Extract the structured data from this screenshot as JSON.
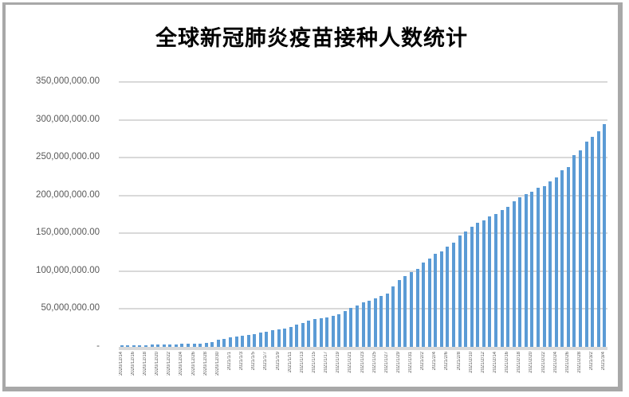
{
  "frame": {
    "background": "#ffffff",
    "border_color": "#a8a8a8"
  },
  "chart_data": {
    "type": "bar",
    "title": "全球新冠肺炎疫苗接种人数统计",
    "xlabel": "",
    "ylabel": "",
    "ylim": [
      0,
      350000000
    ],
    "grid": true,
    "legend": false,
    "bar_color": "#5b9bd5",
    "gridline_color": "#d9d9d9",
    "axis_text_color": "#595959",
    "x_tick_every": 2,
    "y_ticks": [
      {
        "label": "350,000,000.00",
        "value": 350000000
      },
      {
        "label": "300,000,000.00",
        "value": 300000000
      },
      {
        "label": "250,000,000.00",
        "value": 250000000
      },
      {
        "label": "200,000,000.00",
        "value": 200000000
      },
      {
        "label": "150,000,000.00",
        "value": 150000000
      },
      {
        "label": "100,000,000.00",
        "value": 100000000
      },
      {
        "label": "50,000,000.00",
        "value": 50000000
      },
      {
        "label": "-",
        "value": 0
      }
    ],
    "x": [
      "2020/12/14",
      "2020/12/15",
      "2020/12/16",
      "2020/12/17",
      "2020/12/18",
      "2020/12/19",
      "2020/12/20",
      "2020/12/21",
      "2020/12/22",
      "2020/12/23",
      "2020/12/24",
      "2020/12/25",
      "2020/12/26",
      "2020/12/27",
      "2020/12/28",
      "2020/12/29",
      "2020/12/30",
      "2020/12/31",
      "2021/1/1",
      "2021/1/2",
      "2021/1/3",
      "2021/1/4",
      "2021/1/5",
      "2021/1/6",
      "2021/1/7",
      "2021/1/8",
      "2021/1/9",
      "2021/1/10",
      "2021/1/11",
      "2021/1/12",
      "2021/1/13",
      "2021/1/14",
      "2021/1/15",
      "2021/1/16",
      "2021/1/17",
      "2021/1/18",
      "2021/1/19",
      "2021/1/20",
      "2021/1/21",
      "2021/1/22",
      "2021/1/23",
      "2021/1/24",
      "2021/1/25",
      "2021/1/26",
      "2021/1/27",
      "2021/1/28",
      "2021/1/29",
      "2021/1/30",
      "2021/1/31",
      "2021/2/1",
      "2021/2/2",
      "2021/2/3",
      "2021/2/4",
      "2021/2/5",
      "2021/2/6",
      "2021/2/7",
      "2021/2/8",
      "2021/2/9",
      "2021/2/10",
      "2021/2/11",
      "2021/2/12",
      "2021/2/13",
      "2021/2/14",
      "2021/2/15",
      "2021/2/16",
      "2021/2/17",
      "2021/2/18",
      "2021/2/19",
      "2021/2/20",
      "2021/2/21",
      "2021/2/22",
      "2021/2/23",
      "2021/2/24",
      "2021/2/25",
      "2021/2/26",
      "2021/2/27",
      "2021/2/28",
      "2021/3/1",
      "2021/3/2",
      "2021/3/3",
      "2021/3/4"
    ],
    "values": [
      1900000,
      2000000,
      2100000,
      2250000,
      2600000,
      2800000,
      2950000,
      3100000,
      3300000,
      3500000,
      3750000,
      3950000,
      4200000,
      4500000,
      5000000,
      5800000,
      9200000,
      10500000,
      12500000,
      13500000,
      14500000,
      15500000,
      17000000,
      18500000,
      20000000,
      22000000,
      23500000,
      24500000,
      26500000,
      29000000,
      32000000,
      35000000,
      36500000,
      38000000,
      39000000,
      40500000,
      43000000,
      47000000,
      52000000,
      55000000,
      58500000,
      61000000,
      64500000,
      67500000,
      70500000,
      80000000,
      88000000,
      94000000,
      99000000,
      102500000,
      111000000,
      117000000,
      122500000,
      126500000,
      132500000,
      137500000,
      147500000,
      152500000,
      158500000,
      163500000,
      167000000,
      172000000,
      176000000,
      181000000,
      184500000,
      192500000,
      197500000,
      201500000,
      204500000,
      210500000,
      212500000,
      219000000,
      223500000,
      233000000,
      237500000,
      253000000,
      259500000,
      271000000,
      278000000,
      284500000,
      294500000
    ]
  }
}
